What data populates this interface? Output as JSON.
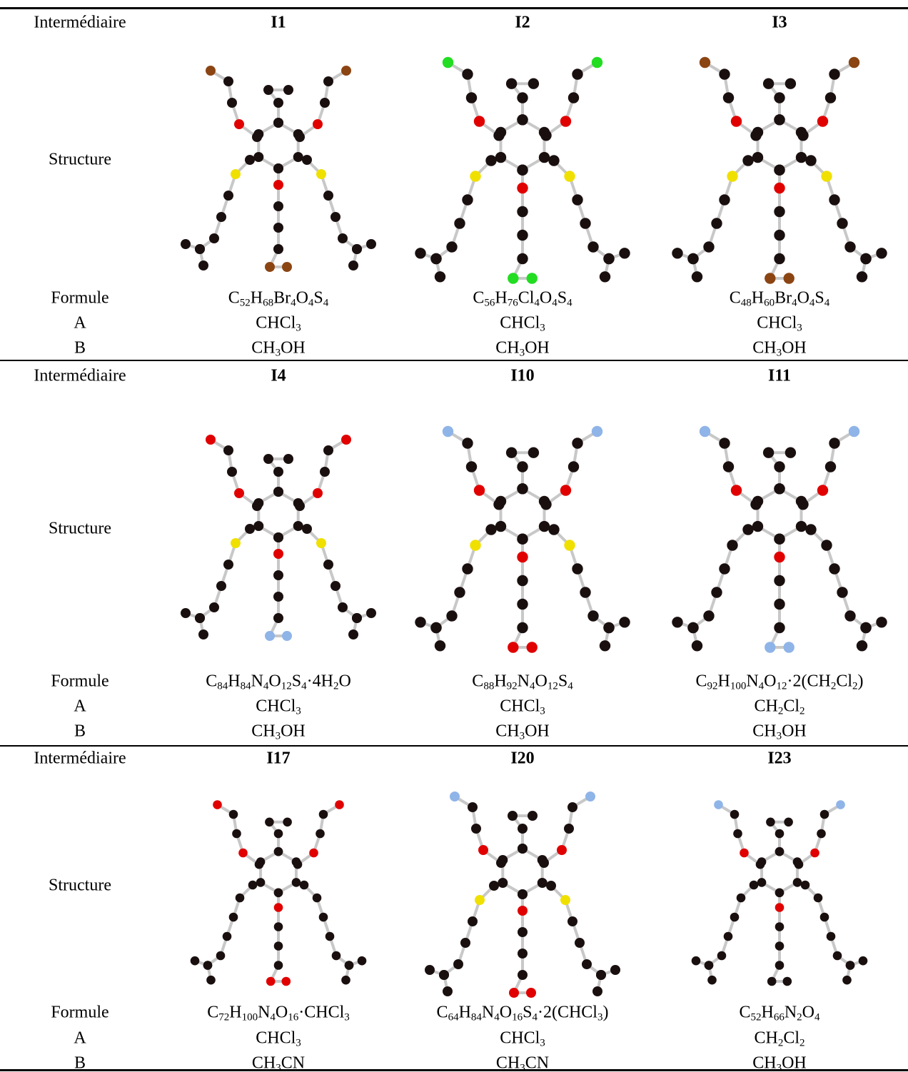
{
  "rows": [
    {
      "label": "Intermédiaire",
      "structure_label": "Structure",
      "formula_label": "Formule",
      "a_label": "A",
      "b_label": "B",
      "compounds": [
        {
          "name": "I1",
          "formula": "C52H68Br4O4S4",
          "A": "CHCl3",
          "B": "CH3OH"
        },
        {
          "name": "I2",
          "formula": "C56H76Cl4O4S4",
          "A": "CHCl3",
          "B": "CH3OH"
        },
        {
          "name": "I3",
          "formula": "C48H60Br4O4S4",
          "A": "CHCl3",
          "B": "CH3OH"
        }
      ]
    },
    {
      "label": "Intermédiaire",
      "structure_label": "Structure",
      "formula_label": "Formule",
      "a_label": "A",
      "b_label": "B",
      "compounds": [
        {
          "name": "I4",
          "formula": "C84H84N4O12S4·4H2O",
          "A": "CHCl3",
          "B": "CH3OH"
        },
        {
          "name": "I10",
          "formula": "C88H92N4O12S4",
          "A": "CHCl3",
          "B": "CH3OH"
        },
        {
          "name": "I11",
          "formula": "C92H100N4O12·2(CH2Cl2)",
          "A": "CH2Cl2",
          "B": "CH3OH"
        }
      ]
    },
    {
      "label": "Intermédiaire",
      "structure_label": "Structure",
      "formula_label": "Formule",
      "a_label": "A",
      "b_label": "B",
      "compounds": [
        {
          "name": "I17",
          "formula": "C72H100N4O16·CHCl3",
          "A": "CHCl3",
          "B": "CH3CN"
        },
        {
          "name": "I20",
          "formula": "C64H84N4O16S4·2(CHCl3)",
          "A": "CHCl3",
          "B": "CH3CN"
        },
        {
          "name": "I23",
          "formula": "C52H66N2O4",
          "A": "CH2Cl2",
          "B": "CH3OH"
        }
      ]
    }
  ]
}
